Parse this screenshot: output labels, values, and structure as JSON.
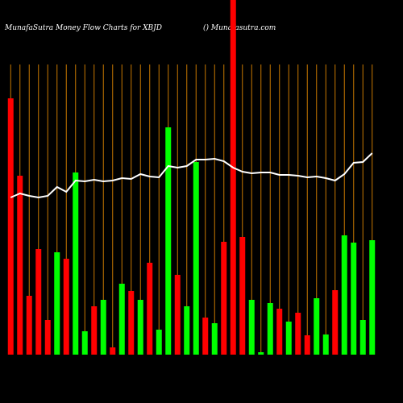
{
  "chart_data": {
    "type": "bar",
    "title": "MunafaSutra  Money Flow  Charts for XBJD",
    "subtitle": "() Munafasutra.com",
    "categories": [
      null,
      null,
      null,
      null,
      null,
      null,
      null,
      null,
      null,
      null,
      null,
      null,
      null,
      null,
      null,
      null,
      null,
      null,
      null,
      null,
      null,
      null,
      null,
      null,
      null,
      null,
      null,
      null,
      null,
      null,
      null,
      null,
      null,
      null,
      null,
      null,
      null,
      null,
      null,
      null
    ],
    "values": [
      318,
      222,
      73,
      131,
      43,
      127,
      119,
      226,
      29,
      60,
      68,
      9,
      88,
      79,
      68,
      114,
      31,
      282,
      99,
      60,
      239,
      46,
      39,
      140,
      440,
      146,
      68,
      3,
      64,
      57,
      41,
      52,
      24,
      70,
      25,
      80,
      148,
      139,
      43,
      142
    ],
    "colors": [
      "#ff0000",
      "#ff0000",
      "#ff0000",
      "#ff0000",
      "#ff0000",
      "#00ff00",
      "#ff0000",
      "#00ff00",
      "#00ff00",
      "#ff0000",
      "#00ff00",
      "#ff0000",
      "#00ff00",
      "#ff0000",
      "#00ff00",
      "#ff0000",
      "#00ff00",
      "#00ff00",
      "#ff0000",
      "#00ff00",
      "#00ff00",
      "#ff0000",
      "#00ff00",
      "#ff0000",
      "#ff0000",
      "#ff0000",
      "#00ff00",
      "#00ff00",
      "#00ff00",
      "#ff0000",
      "#00ff00",
      "#ff0000",
      "#ff0000",
      "#00ff00",
      "#00ff00",
      "#ff0000",
      "#00ff00",
      "#00ff00",
      "#00ff00",
      "#00ff00"
    ],
    "line_values": [
      195,
      200,
      197,
      195,
      197,
      208,
      202,
      216,
      215,
      217,
      215,
      216,
      219,
      218,
      224,
      221,
      220,
      234,
      232,
      234,
      242,
      242,
      243,
      240,
      232,
      227,
      225,
      226,
      226,
      223,
      223,
      222,
      220,
      221,
      219,
      216,
      224,
      238,
      239,
      250
    ],
    "line_color": "#ffffff",
    "ylim": [
      0,
      440
    ]
  }
}
